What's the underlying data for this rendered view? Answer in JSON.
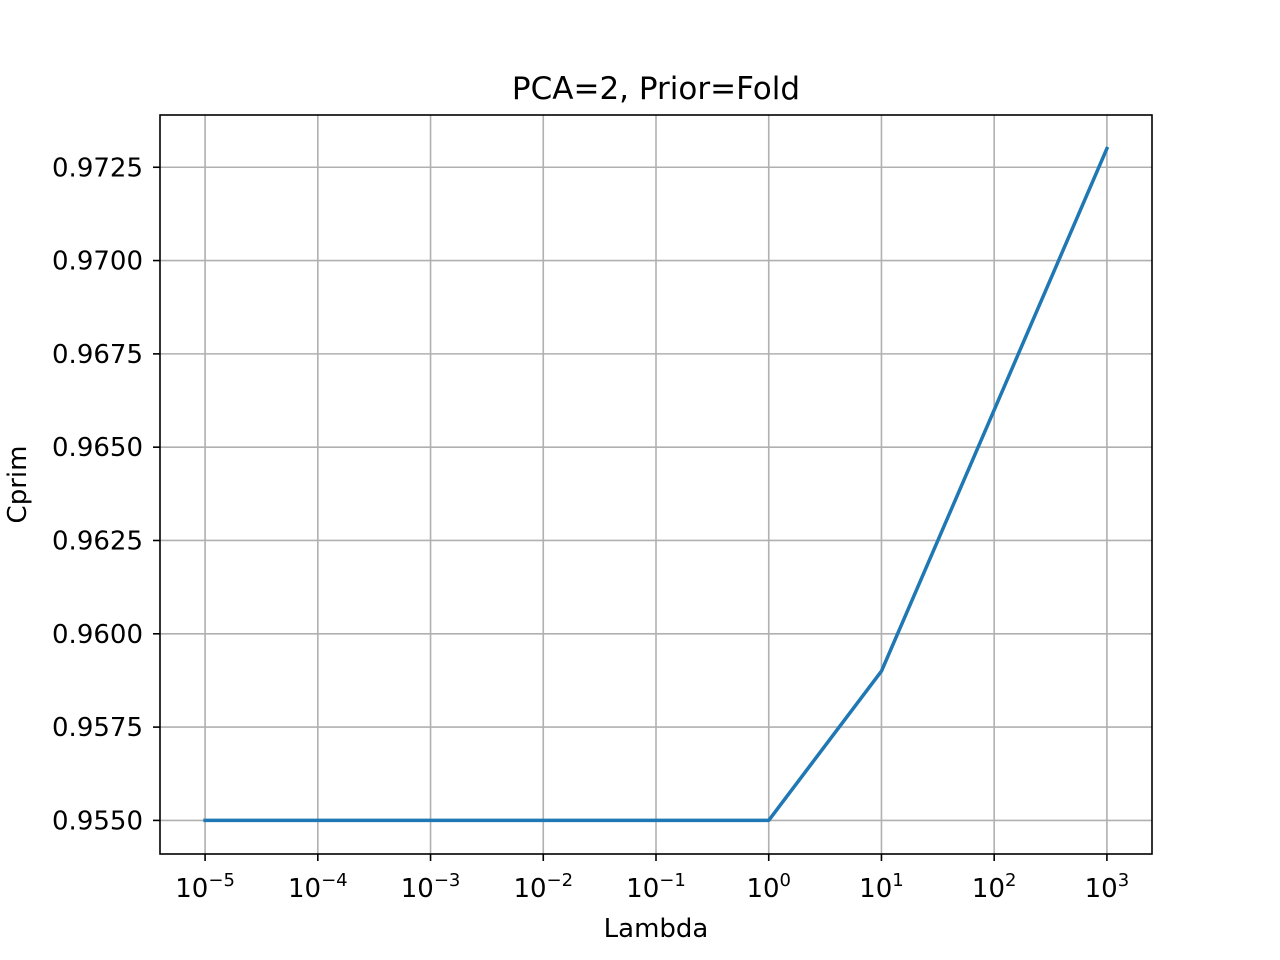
{
  "chart_data": {
    "type": "line",
    "title": "PCA=2, Prior=Fold",
    "xlabel": "Lambda",
    "ylabel": "Cprim",
    "xscale": "log",
    "grid": true,
    "x": [
      1e-05,
      0.0001,
      0.001,
      0.01,
      0.1,
      1,
      10,
      100,
      1000
    ],
    "series": [
      {
        "color": "#1f77b4",
        "values": [
          0.955,
          0.955,
          0.955,
          0.955,
          0.955,
          0.955,
          0.959,
          0.966,
          0.973
        ]
      }
    ],
    "xticks": [
      {
        "base": "10",
        "exp": "−5"
      },
      {
        "base": "10",
        "exp": "−4"
      },
      {
        "base": "10",
        "exp": "−3"
      },
      {
        "base": "10",
        "exp": "−2"
      },
      {
        "base": "10",
        "exp": "−1"
      },
      {
        "base": "10",
        "exp": "0"
      },
      {
        "base": "10",
        "exp": "1"
      },
      {
        "base": "10",
        "exp": "2"
      },
      {
        "base": "10",
        "exp": "3"
      }
    ],
    "yticks": [
      "0.9550",
      "0.9575",
      "0.9600",
      "0.9625",
      "0.9650",
      "0.9675",
      "0.9700",
      "0.9725"
    ],
    "ytick_values": [
      0.955,
      0.9575,
      0.96,
      0.9625,
      0.965,
      0.9675,
      0.97,
      0.9725
    ],
    "ylim": [
      0.9541,
      0.9739
    ],
    "xlim_log10": [
      -5.4,
      3.4
    ]
  }
}
